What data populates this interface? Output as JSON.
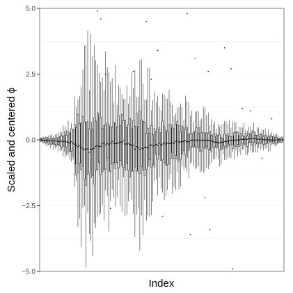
{
  "chart_data": {
    "type": "boxplot",
    "xlabel": "Index",
    "ylabel": "Scaled and centered ϕ",
    "ylim": [
      -5,
      5
    ],
    "y_ticks": [
      -5,
      -2.5,
      0,
      2.5,
      5
    ],
    "y_tick_labels": [
      "−5.0",
      "−2.5",
      "0.0",
      "2.5",
      "5.0"
    ],
    "x_ticks_shown": false,
    "box_count": 150,
    "grid": true,
    "panel_border": true,
    "colors": {
      "box": "#000000",
      "grid": "#ebebeb",
      "border": "#7f7f7f",
      "background": "#ffffff"
    },
    "amplitude_profile": {
      "index": [
        0,
        10,
        20,
        22,
        25,
        30,
        35,
        40,
        45,
        50,
        55,
        60,
        62,
        66,
        70,
        75,
        80,
        85,
        90,
        95,
        100,
        105,
        110,
        115,
        120,
        125,
        130,
        135,
        140,
        145,
        149
      ],
      "half_iqr": [
        0.05,
        0.15,
        0.4,
        0.9,
        1.1,
        1.2,
        0.9,
        0.9,
        0.8,
        0.8,
        0.9,
        1.0,
        1.1,
        0.8,
        0.6,
        0.7,
        0.6,
        0.55,
        0.5,
        0.35,
        0.35,
        0.3,
        0.25,
        0.22,
        0.25,
        0.2,
        0.2,
        0.15,
        0.12,
        0.1,
        0.05
      ],
      "whisker": [
        0.1,
        0.3,
        0.8,
        2.2,
        3.3,
        3.8,
        2.6,
        2.8,
        2.5,
        2.1,
        2.2,
        3.0,
        3.6,
        2.4,
        1.9,
        2.0,
        1.8,
        1.5,
        1.3,
        1.0,
        1.0,
        0.9,
        0.7,
        0.6,
        0.6,
        0.5,
        0.5,
        0.4,
        0.35,
        0.25,
        0.1
      ]
    },
    "median_trend": {
      "index": [
        0,
        20,
        30,
        40,
        50,
        60,
        70,
        80,
        90,
        100,
        110,
        120,
        130,
        140,
        149
      ],
      "value": [
        0.0,
        -0.1,
        -0.4,
        -0.15,
        -0.05,
        -0.35,
        -0.2,
        -0.1,
        -0.05,
        0.0,
        -0.1,
        0.0,
        0.05,
        0.0,
        0.0
      ]
    },
    "outliers": [
      {
        "i": 35,
        "y": 4.9
      },
      {
        "i": 37,
        "y": 4.6
      },
      {
        "i": 40,
        "y": 2.5
      },
      {
        "i": 43,
        "y": -2.6
      },
      {
        "i": 57,
        "y": 2.6
      },
      {
        "i": 65,
        "y": 4.5
      },
      {
        "i": 68,
        "y": 2.3
      },
      {
        "i": 72,
        "y": 3.4
      },
      {
        "i": 75,
        "y": -2.9
      },
      {
        "i": 90,
        "y": 4.8
      },
      {
        "i": 92,
        "y": -3.6
      },
      {
        "i": 95,
        "y": 3.1
      },
      {
        "i": 101,
        "y": -2.2
      },
      {
        "i": 103,
        "y": 2.6
      },
      {
        "i": 104,
        "y": -3.4
      },
      {
        "i": 113,
        "y": 3.5
      },
      {
        "i": 117,
        "y": 2.7
      },
      {
        "i": 118,
        "y": -4.9
      },
      {
        "i": 124,
        "y": 1.2
      },
      {
        "i": 129,
        "y": 1.1
      },
      {
        "i": 136,
        "y": -0.7
      },
      {
        "i": 142,
        "y": 0.8
      }
    ]
  }
}
